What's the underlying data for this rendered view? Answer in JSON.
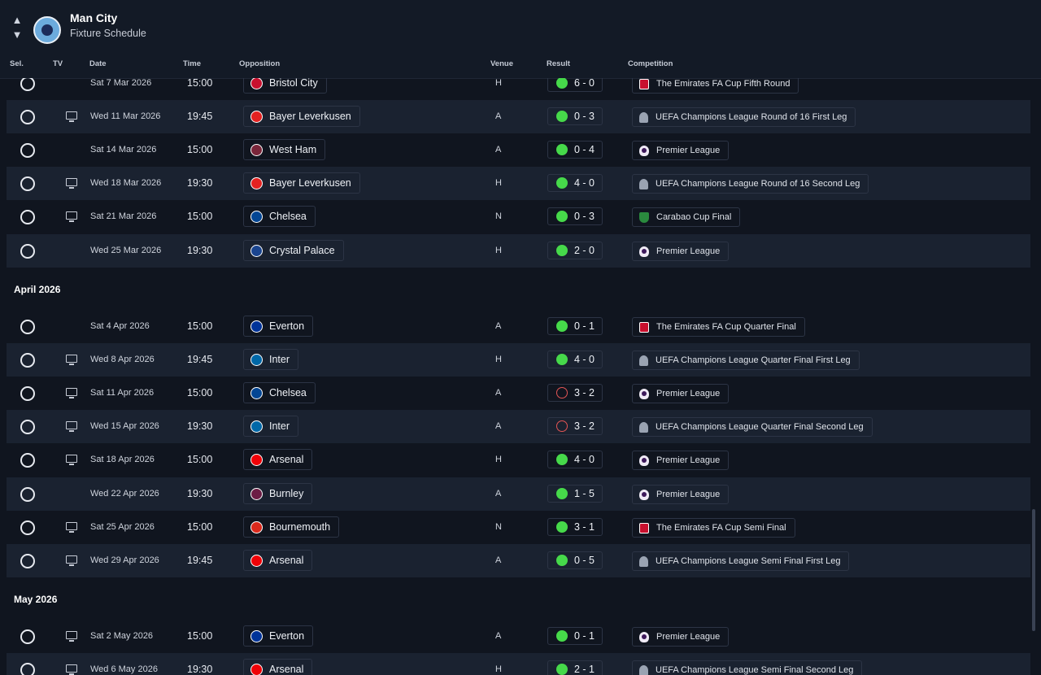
{
  "header": {
    "club_name": "Man City",
    "subtitle": "Fixture Schedule"
  },
  "columns": {
    "sel": "Sel.",
    "tv": "TV",
    "date": "Date",
    "time": "Time",
    "opposition": "Opposition",
    "venue": "Venue",
    "result": "Result",
    "competition": "Competition"
  },
  "months": [
    "April 2026",
    "May 2026"
  ],
  "colors": {
    "win": "#46d94a",
    "loss": "#e45555",
    "background": "#10151f",
    "row_alt": "#1a2230"
  },
  "fixtures": [
    {
      "tv": false,
      "date": "Sat 7 Mar 2026",
      "time": "15:00",
      "opponent": "Bristol City",
      "venue": "H",
      "outcome": "win",
      "score": "6 - 0",
      "competition": "The Emirates FA Cup Fifth Round",
      "comp_icon": "fa-cup-icon",
      "crest": "#c8102e"
    },
    {
      "tv": true,
      "date": "Wed 11 Mar 2026",
      "time": "19:45",
      "opponent": "Bayer Leverkusen",
      "venue": "A",
      "outcome": "win",
      "score": "0 - 3",
      "competition": "UEFA Champions League Round of 16  First Leg",
      "comp_icon": "ucl-trophy-icon",
      "crest": "#e32221"
    },
    {
      "tv": false,
      "date": "Sat 14 Mar 2026",
      "time": "15:00",
      "opponent": "West Ham",
      "venue": "A",
      "outcome": "win",
      "score": "0 - 4",
      "competition": "Premier League",
      "comp_icon": "premier-league-icon",
      "crest": "#7a263a"
    },
    {
      "tv": true,
      "date": "Wed 18 Mar 2026",
      "time": "19:30",
      "opponent": "Bayer Leverkusen",
      "venue": "H",
      "outcome": "win",
      "score": "4 - 0",
      "competition": "UEFA Champions League Round of 16  Second Leg",
      "comp_icon": "ucl-trophy-icon",
      "crest": "#e32221"
    },
    {
      "tv": true,
      "date": "Sat 21 Mar 2026",
      "time": "15:00",
      "opponent": "Chelsea",
      "venue": "N",
      "outcome": "win",
      "score": "0 - 3",
      "competition": "Carabao Cup Final",
      "comp_icon": "carabao-cup-icon",
      "crest": "#034694"
    },
    {
      "tv": false,
      "date": "Wed 25 Mar 2026",
      "time": "19:30",
      "opponent": "Crystal Palace",
      "venue": "H",
      "outcome": "win",
      "score": "2 - 0",
      "competition": "Premier League",
      "comp_icon": "premier-league-icon",
      "crest": "#1b458f"
    },
    {
      "tv": false,
      "date": "Sat 4 Apr 2026",
      "time": "15:00",
      "opponent": "Everton",
      "venue": "A",
      "outcome": "win",
      "score": "0 - 1",
      "competition": "The Emirates FA Cup Quarter Final",
      "comp_icon": "fa-cup-icon",
      "crest": "#003399"
    },
    {
      "tv": true,
      "date": "Wed 8 Apr 2026",
      "time": "19:45",
      "opponent": "Inter",
      "venue": "H",
      "outcome": "win",
      "score": "4 - 0",
      "competition": "UEFA Champions League Quarter Final First Leg",
      "comp_icon": "ucl-trophy-icon",
      "crest": "#0068a8"
    },
    {
      "tv": true,
      "date": "Sat 11 Apr 2026",
      "time": "15:00",
      "opponent": "Chelsea",
      "venue": "A",
      "outcome": "loss",
      "score": "3 - 2",
      "competition": "Premier League",
      "comp_icon": "premier-league-icon",
      "crest": "#034694"
    },
    {
      "tv": true,
      "date": "Wed 15 Apr 2026",
      "time": "19:30",
      "opponent": "Inter",
      "venue": "A",
      "outcome": "loss",
      "score": "3 - 2",
      "competition": "UEFA Champions League Quarter Final Second Leg",
      "comp_icon": "ucl-trophy-icon",
      "crest": "#0068a8"
    },
    {
      "tv": true,
      "date": "Sat 18 Apr 2026",
      "time": "15:00",
      "opponent": "Arsenal",
      "venue": "H",
      "outcome": "win",
      "score": "4 - 0",
      "competition": "Premier League",
      "comp_icon": "premier-league-icon",
      "crest": "#ef0107"
    },
    {
      "tv": false,
      "date": "Wed 22 Apr 2026",
      "time": "19:30",
      "opponent": "Burnley",
      "venue": "A",
      "outcome": "win",
      "score": "1 - 5",
      "competition": "Premier League",
      "comp_icon": "premier-league-icon",
      "crest": "#6c1d45"
    },
    {
      "tv": true,
      "date": "Sat 25 Apr 2026",
      "time": "15:00",
      "opponent": "Bournemouth",
      "venue": "N",
      "outcome": "win",
      "score": "3 - 1",
      "competition": "The Emirates FA Cup Semi Final",
      "comp_icon": "fa-cup-icon",
      "crest": "#da291c"
    },
    {
      "tv": true,
      "date": "Wed 29 Apr 2026",
      "time": "19:45",
      "opponent": "Arsenal",
      "venue": "A",
      "outcome": "win",
      "score": "0 - 5",
      "competition": "UEFA Champions League Semi Final First Leg",
      "comp_icon": "ucl-trophy-icon",
      "crest": "#ef0107"
    },
    {
      "tv": true,
      "date": "Sat 2 May 2026",
      "time": "15:00",
      "opponent": "Everton",
      "venue": "A",
      "outcome": "win",
      "score": "0 - 1",
      "competition": "Premier League",
      "comp_icon": "premier-league-icon",
      "crest": "#003399"
    },
    {
      "tv": true,
      "date": "Wed 6 May 2026",
      "time": "19:30",
      "opponent": "Arsenal",
      "venue": "H",
      "outcome": "win",
      "score": "2 - 1",
      "competition": "UEFA Champions League Semi Final Second Leg",
      "comp_icon": "ucl-trophy-icon",
      "crest": "#ef0107"
    }
  ]
}
